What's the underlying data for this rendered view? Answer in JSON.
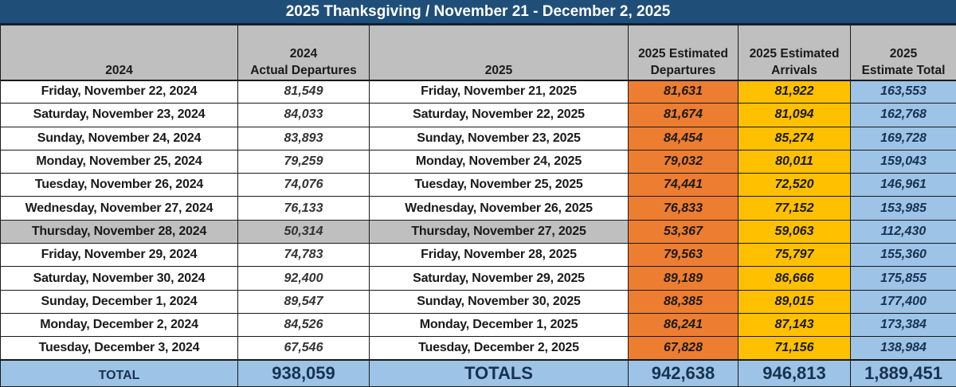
{
  "title": "2025 Thanksgiving  / November 21 - December 2, 2025",
  "colors": {
    "title_bar": "#1f4e79",
    "header_bg": "#bfbfbf",
    "departures_bg": "#ed7d31",
    "arrivals_bg": "#ffc000",
    "total_bg": "#9dc3e6",
    "thanksgiving_row_bg": "#bfbfbf"
  },
  "headers": [
    {
      "line1": "",
      "line2": "2024"
    },
    {
      "line1": "2024",
      "line2": "Actual Departures"
    },
    {
      "line1": "",
      "line2": "2025"
    },
    {
      "line1": "2025 Estimated",
      "line2": "Departures"
    },
    {
      "line1": "2025 Estimated",
      "line2": "Arrivals"
    },
    {
      "line1": "2025",
      "line2": "Estimate Total"
    }
  ],
  "rows": [
    {
      "date_2024": "Friday, November 22, 2024",
      "departures_2024": "81,549",
      "date_2025": "Friday, November 21, 2025",
      "est_departures": "81,631",
      "est_arrivals": "81,922",
      "est_total": "163,553"
    },
    {
      "date_2024": "Saturday, November 23, 2024",
      "departures_2024": "84,033",
      "date_2025": "Saturday, November 22, 2025",
      "est_departures": "81,674",
      "est_arrivals": "81,094",
      "est_total": "162,768"
    },
    {
      "date_2024": "Sunday, November 24, 2024",
      "departures_2024": "83,893",
      "date_2025": "Sunday, November 23, 2025",
      "est_departures": "84,454",
      "est_arrivals": "85,274",
      "est_total": "169,728"
    },
    {
      "date_2024": "Monday, November 25, 2024",
      "departures_2024": "79,259",
      "date_2025": "Monday, November 24, 2025",
      "est_departures": "79,032",
      "est_arrivals": "80,011",
      "est_total": "159,043"
    },
    {
      "date_2024": "Tuesday, November 26, 2024",
      "departures_2024": "74,076",
      "date_2025": "Tuesday, November 25, 2025",
      "est_departures": "74,441",
      "est_arrivals": "72,520",
      "est_total": "146,961"
    },
    {
      "date_2024": "Wednesday, November 27, 2024",
      "departures_2024": "76,133",
      "date_2025": "Wednesday, November 26, 2025",
      "est_departures": "76,833",
      "est_arrivals": "77,152",
      "est_total": "153,985"
    },
    {
      "date_2024": "Thursday, November 28, 2024",
      "departures_2024": "50,314",
      "date_2025": "Thursday, November 27, 2025",
      "est_departures": "53,367",
      "est_arrivals": "59,063",
      "est_total": "112,430"
    },
    {
      "date_2024": "Friday, November 29, 2024",
      "departures_2024": "74,783",
      "date_2025": "Friday, November 28, 2025",
      "est_departures": "79,563",
      "est_arrivals": "75,797",
      "est_total": "155,360"
    },
    {
      "date_2024": "Saturday, November 30, 2024",
      "departures_2024": "92,400",
      "date_2025": "Saturday, November 29, 2025",
      "est_departures": "89,189",
      "est_arrivals": "86,666",
      "est_total": "175,855"
    },
    {
      "date_2024": "Sunday, December 1, 2024",
      "departures_2024": "89,547",
      "date_2025": "Sunday, November 30, 2025",
      "est_departures": "88,385",
      "est_arrivals": "89,015",
      "est_total": "177,400"
    },
    {
      "date_2024": "Monday, December 2, 2024",
      "departures_2024": "84,526",
      "date_2025": "Monday, December 1, 2025",
      "est_departures": "86,241",
      "est_arrivals": "87,143",
      "est_total": "173,384"
    },
    {
      "date_2024": "Tuesday, December 3, 2024",
      "departures_2024": "67,546",
      "date_2025": "Tuesday, December 2, 2025",
      "est_departures": "67,828",
      "est_arrivals": "71,156",
      "est_total": "138,984"
    }
  ],
  "totals": {
    "label_2024": "TOTAL",
    "departures_2024": "938,059",
    "label_2025": "TOTALS",
    "est_departures": "942,638",
    "est_arrivals": "946,813",
    "est_total": "1,889,451"
  }
}
